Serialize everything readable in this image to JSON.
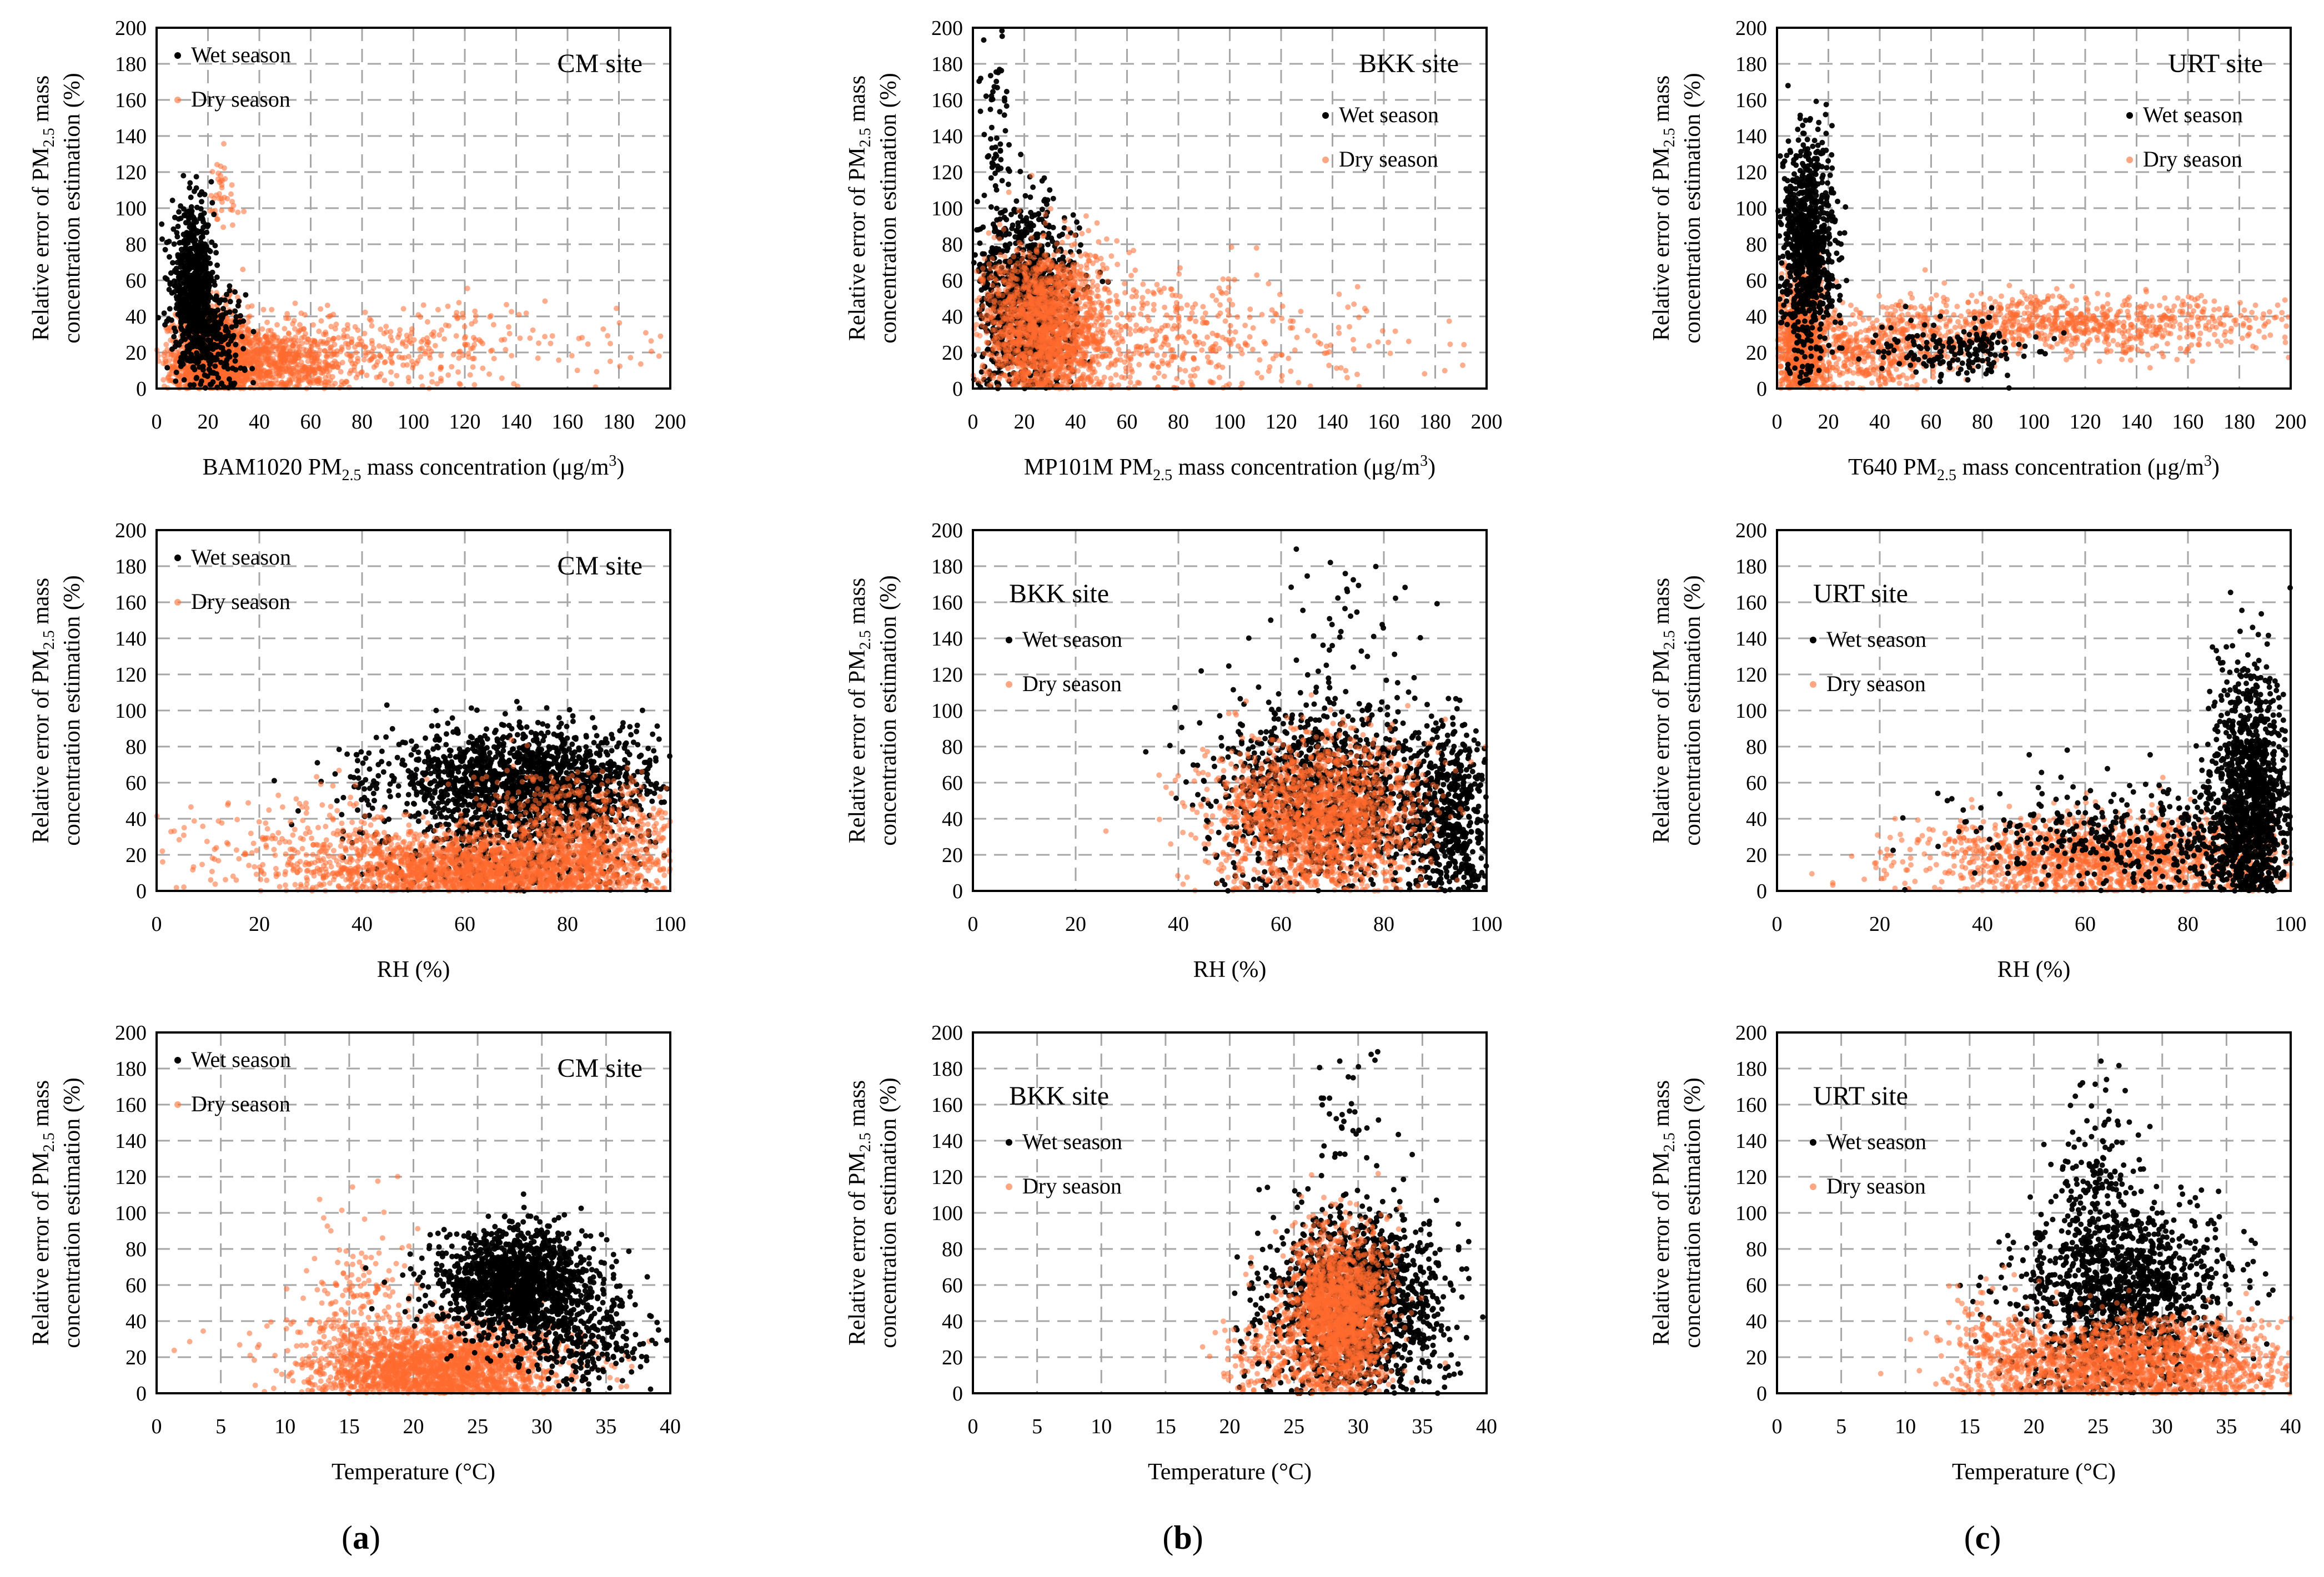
{
  "figure": {
    "colors": {
      "wet": "#000000",
      "dry": "#ff6a2e",
      "grid": "#a6a6a6",
      "axis": "#000000"
    },
    "column_labels": [
      "(a)",
      "(b)",
      "(c)"
    ],
    "ylabel_line1_prefix": "Relative error of PM",
    "ylabel_line1_sub": "2.5",
    "ylabel_line1_suffix": " mass",
    "ylabel_line2": "concentration estimation (%)",
    "legend_wet": "Wet season",
    "legend_dry": "Dry season"
  },
  "chart_data": [
    {
      "type": "scatter",
      "id": "a1",
      "site_label": "CM site",
      "xlabel": {
        "pre": "BAM1020  PM",
        "sub": "2.5",
        "post": " mass concentration (μg/m",
        "sup": "3",
        "end": ")"
      },
      "xlim": [
        0,
        200
      ],
      "ylim": [
        0,
        200
      ],
      "xticks": [
        0,
        20,
        40,
        60,
        80,
        100,
        120,
        140,
        160,
        180,
        200
      ],
      "yticks": [
        0,
        20,
        40,
        60,
        80,
        100,
        120,
        140,
        160,
        180,
        200
      ],
      "legend_pos": "top-left",
      "site_pos": "top-right",
      "series": [
        {
          "name": "Dry season",
          "clusters": [
            {
              "cx": 22,
              "sx": 7,
              "cy": 18,
              "sy": 14,
              "n": 1400
            },
            {
              "cx": 40,
              "sx": 18,
              "cy": 15,
              "sy": 10,
              "n": 900
            },
            {
              "cx": 90,
              "sx": 45,
              "cy": 22,
              "sy": 12,
              "n": 350
            },
            {
              "cx": 25,
              "sx": 4,
              "cy": 105,
              "sy": 12,
              "n": 40
            }
          ]
        },
        {
          "name": "Wet season",
          "clusters": [
            {
              "cx": 14,
              "sx": 4,
              "cy": 58,
              "sy": 20,
              "n": 650
            },
            {
              "cx": 22,
              "sx": 6,
              "cy": 28,
              "sy": 15,
              "n": 250
            }
          ]
        }
      ]
    },
    {
      "type": "scatter",
      "id": "b1",
      "site_label": "BKK site",
      "xlabel": {
        "pre": "MP101M PM",
        "sub": "2.5",
        "post": " mass concentration (μg/m",
        "sup": "3",
        "end": ")"
      },
      "xlim": [
        0,
        200
      ],
      "ylim": [
        0,
        200
      ],
      "xticks": [
        0,
        20,
        40,
        60,
        80,
        100,
        120,
        140,
        160,
        180,
        200
      ],
      "yticks": [
        0,
        20,
        40,
        60,
        80,
        100,
        120,
        140,
        160,
        180,
        200
      ],
      "legend_pos": "upper-right",
      "site_pos": "top-right",
      "series": [
        {
          "name": "Wet season",
          "clusters": [
            {
              "cx": 20,
              "sx": 10,
              "cy": 50,
              "sy": 26,
              "n": 1000
            },
            {
              "cx": 9,
              "sx": 3,
              "cy": 140,
              "sy": 28,
              "n": 60
            }
          ]
        },
        {
          "name": "Dry season",
          "clusters": [
            {
              "cx": 28,
              "sx": 12,
              "cy": 35,
              "sy": 22,
              "n": 1700
            },
            {
              "cx": 70,
              "sx": 25,
              "cy": 28,
              "sy": 18,
              "n": 350
            },
            {
              "cx": 120,
              "sx": 35,
              "cy": 25,
              "sy": 15,
              "n": 90
            }
          ]
        }
      ]
    },
    {
      "type": "scatter",
      "id": "c1",
      "site_label": "URT site",
      "xlabel": {
        "pre": "T640 PM",
        "sub": "2.5",
        "post": " mass concentration (μg/m",
        "sup": "3",
        "end": ")"
      },
      "xlim": [
        0,
        200
      ],
      "ylim": [
        0,
        200
      ],
      "xticks": [
        0,
        20,
        40,
        60,
        80,
        100,
        120,
        140,
        160,
        180,
        200
      ],
      "yticks": [
        0,
        20,
        40,
        60,
        80,
        100,
        120,
        140,
        160,
        180,
        200
      ],
      "legend_pos": "upper-right",
      "site_pos": "top-right",
      "series": [
        {
          "name": "Dry season",
          "clusters": [
            {
              "cx": 10,
              "sx": 5,
              "cy": 28,
              "sy": 18,
              "n": 900
            },
            {
              "cx": 110,
              "sx": 45,
              "cy": 35,
              "sy": 8,
              "n": 900
            },
            {
              "cx": 40,
              "sx": 15,
              "cy": 20,
              "sy": 10,
              "n": 400
            }
          ]
        },
        {
          "name": "Wet season",
          "clusters": [
            {
              "cx": 12,
              "sx": 5,
              "cy": 80,
              "sy": 30,
              "n": 900
            },
            {
              "cx": 70,
              "sx": 15,
              "cy": 22,
              "sy": 8,
              "n": 180
            }
          ]
        }
      ]
    },
    {
      "type": "scatter",
      "id": "a2",
      "site_label": "CM site",
      "xlabel": {
        "pre": "RH (%)"
      },
      "xlim": [
        0,
        100
      ],
      "ylim": [
        0,
        200
      ],
      "xticks": [
        0,
        20,
        40,
        60,
        80,
        100
      ],
      "yticks": [
        0,
        20,
        40,
        60,
        80,
        100,
        120,
        140,
        160,
        180,
        200
      ],
      "legend_pos": "top-left",
      "site_pos": "top-right",
      "series": [
        {
          "name": "Wet season",
          "clusters": [
            {
              "cx": 72,
              "sx": 14,
              "cy": 60,
              "sy": 15,
              "n": 1600
            },
            {
              "cx": 70,
              "sx": 12,
              "cy": 20,
              "sy": 12,
              "n": 300
            }
          ]
        },
        {
          "name": "Dry season",
          "clusters": [
            {
              "cx": 65,
              "sx": 18,
              "cy": 12,
              "sy": 10,
              "n": 2000
            },
            {
              "cx": 82,
              "sx": 10,
              "cy": 35,
              "sy": 15,
              "n": 600
            },
            {
              "cx": 30,
              "sx": 12,
              "cy": 25,
              "sy": 15,
              "n": 200
            }
          ]
        }
      ]
    },
    {
      "type": "scatter",
      "id": "b2",
      "site_label": "BKK site",
      "xlabel": {
        "pre": "RH (%)"
      },
      "xlim": [
        0,
        100
      ],
      "ylim": [
        0,
        200
      ],
      "xticks": [
        0,
        20,
        40,
        60,
        80,
        100
      ],
      "yticks": [
        0,
        20,
        40,
        60,
        80,
        100,
        120,
        140,
        160,
        180,
        200
      ],
      "legend_pos": "top-left",
      "site_pos": "top-left",
      "series": [
        {
          "name": "Wet season",
          "clusters": [
            {
              "cx": 70,
              "sx": 12,
              "cy": 55,
              "sy": 25,
              "n": 1200
            },
            {
              "cx": 93,
              "sx": 4,
              "cy": 40,
              "sy": 25,
              "n": 500
            },
            {
              "cx": 70,
              "sx": 8,
              "cy": 150,
              "sy": 25,
              "n": 40
            }
          ]
        },
        {
          "name": "Dry season",
          "clusters": [
            {
              "cx": 67,
              "sx": 10,
              "cy": 40,
              "sy": 22,
              "n": 1900
            }
          ]
        }
      ]
    },
    {
      "type": "scatter",
      "id": "c2",
      "site_label": "URT site",
      "xlabel": {
        "pre": "RH (%)"
      },
      "xlim": [
        0,
        100
      ],
      "ylim": [
        0,
        200
      ],
      "xticks": [
        0,
        20,
        40,
        60,
        80,
        100
      ],
      "yticks": [
        0,
        20,
        40,
        60,
        80,
        100,
        120,
        140,
        160,
        180,
        200
      ],
      "legend_pos": "top-left",
      "site_pos": "top-left",
      "series": [
        {
          "name": "Dry season",
          "clusters": [
            {
              "cx": 65,
              "sx": 18,
              "cy": 18,
              "sy": 12,
              "n": 1500
            }
          ]
        },
        {
          "name": "Wet season",
          "clusters": [
            {
              "cx": 92,
              "sx": 4,
              "cy": 50,
              "sy": 35,
              "n": 1200
            },
            {
              "cx": 70,
              "sx": 15,
              "cy": 30,
              "sy": 15,
              "n": 400
            }
          ]
        }
      ]
    },
    {
      "type": "scatter",
      "id": "a3",
      "site_label": "CM site",
      "xlabel": {
        "pre": "Temperature (°C)"
      },
      "xlim": [
        0,
        40
      ],
      "ylim": [
        0,
        200
      ],
      "xticks": [
        0,
        5,
        10,
        15,
        20,
        25,
        30,
        35,
        40
      ],
      "yticks": [
        0,
        20,
        40,
        60,
        80,
        100,
        120,
        140,
        160,
        180,
        200
      ],
      "legend_pos": "top-left",
      "site_pos": "top-right",
      "series": [
        {
          "name": "Dry season",
          "clusters": [
            {
              "cx": 22,
              "sx": 5,
              "cy": 15,
              "sy": 12,
              "n": 2000
            },
            {
              "cx": 16,
              "sx": 2,
              "cy": 50,
              "sy": 30,
              "n": 200
            }
          ]
        },
        {
          "name": "Wet season",
          "clusters": [
            {
              "cx": 28,
              "sx": 3,
              "cy": 60,
              "sy": 14,
              "n": 1400
            },
            {
              "cx": 33,
              "sx": 3,
              "cy": 30,
              "sy": 15,
              "n": 300
            }
          ]
        }
      ]
    },
    {
      "type": "scatter",
      "id": "b3",
      "site_label": "BKK site",
      "xlabel": {
        "pre": "Temperature (°C)"
      },
      "xlim": [
        0,
        40
      ],
      "ylim": [
        0,
        200
      ],
      "xticks": [
        0,
        5,
        10,
        15,
        20,
        25,
        30,
        35,
        40
      ],
      "yticks": [
        0,
        20,
        40,
        60,
        80,
        100,
        120,
        140,
        160,
        180,
        200
      ],
      "legend_pos": "top-left",
      "site_pos": "top-left",
      "series": [
        {
          "name": "Wet season",
          "clusters": [
            {
              "cx": 30,
              "sx": 3.5,
              "cy": 50,
              "sy": 26,
              "n": 1400
            },
            {
              "cx": 29,
              "sx": 2,
              "cy": 150,
              "sy": 25,
              "n": 40
            }
          ]
        },
        {
          "name": "Dry season",
          "clusters": [
            {
              "cx": 28.5,
              "sx": 2,
              "cy": 45,
              "sy": 22,
              "n": 1900
            },
            {
              "cx": 23,
              "sx": 2,
              "cy": 20,
              "sy": 12,
              "n": 150
            }
          ]
        }
      ]
    },
    {
      "type": "scatter",
      "id": "c3",
      "site_label": "URT  site",
      "xlabel": {
        "pre": "Temperature (°C)"
      },
      "xlim": [
        0,
        40
      ],
      "ylim": [
        0,
        200
      ],
      "xticks": [
        0,
        5,
        10,
        15,
        20,
        25,
        30,
        35,
        40
      ],
      "yticks": [
        0,
        20,
        40,
        60,
        80,
        100,
        120,
        140,
        160,
        180,
        200
      ],
      "legend_pos": "top-left",
      "site_pos": "top-left",
      "series": [
        {
          "name": "Wet season",
          "clusters": [
            {
              "cx": 27,
              "sx": 4,
              "cy": 55,
              "sy": 25,
              "n": 1300
            },
            {
              "cx": 25,
              "sx": 1.5,
              "cy": 120,
              "sy": 25,
              "n": 150
            }
          ]
        },
        {
          "name": "Dry season",
          "clusters": [
            {
              "cx": 28,
              "sx": 6,
              "cy": 18,
              "sy": 12,
              "n": 1700
            },
            {
              "cx": 17,
              "sx": 2,
              "cy": 25,
              "sy": 18,
              "n": 150
            }
          ]
        }
      ]
    }
  ]
}
